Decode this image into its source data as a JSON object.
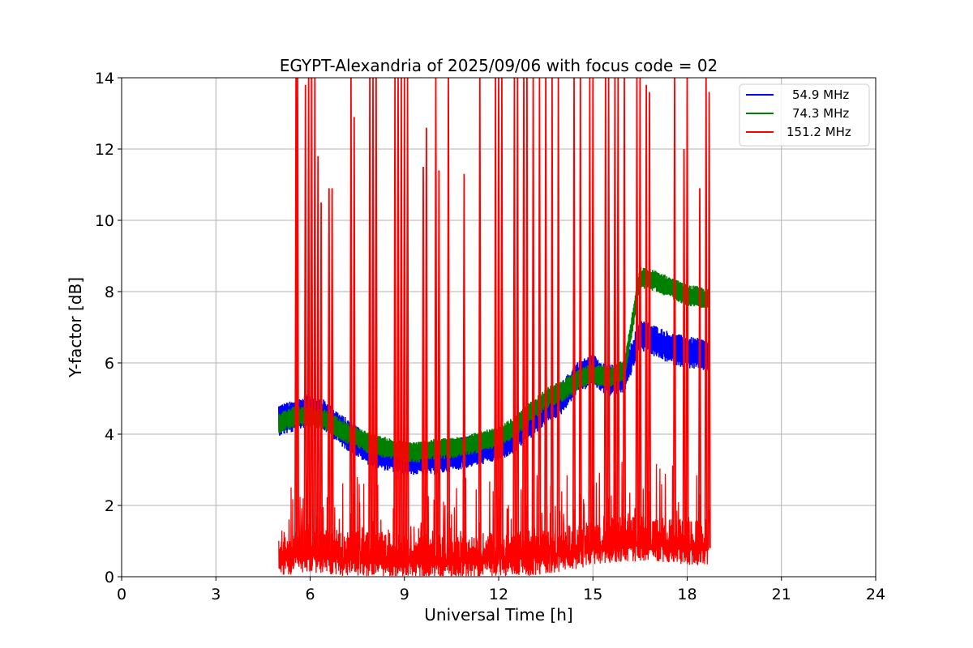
{
  "chart_data": {
    "type": "line",
    "title": "EGYPT-Alexandria of 2025/09/06 with focus code = 02",
    "xlabel": "Universal Time [h]",
    "ylabel": "Y-factor [dB]",
    "xlim": [
      0,
      24
    ],
    "ylim": [
      0,
      14
    ],
    "xticks": [
      "0",
      "3",
      "6",
      "9",
      "12",
      "15",
      "18",
      "21",
      "24"
    ],
    "yticks": [
      "0",
      "2",
      "4",
      "6",
      "8",
      "10",
      "12",
      "14"
    ],
    "grid": true,
    "legend_position": "top-right",
    "series": [
      {
        "name": "54.9 MHz",
        "color": "#0000ff",
        "x": [
          5.0,
          5.5,
          6.0,
          6.5,
          7.0,
          7.5,
          8.0,
          8.5,
          9.0,
          9.5,
          10.0,
          10.5,
          11.0,
          11.5,
          12.0,
          12.5,
          13.0,
          13.5,
          14.0,
          14.5,
          15.0,
          15.5,
          16.0,
          16.5,
          17.0,
          17.5,
          18.0,
          18.7
        ],
        "values": [
          4.4,
          4.5,
          4.7,
          4.5,
          4.1,
          3.8,
          3.5,
          3.4,
          3.3,
          3.3,
          3.3,
          3.4,
          3.5,
          3.6,
          3.7,
          3.9,
          4.3,
          4.7,
          5.0,
          5.6,
          5.8,
          5.5,
          5.6,
          6.8,
          6.6,
          6.4,
          6.3,
          6.2
        ],
        "band": 0.45
      },
      {
        "name": "74.3 MHz",
        "color": "#008000",
        "x": [
          5.0,
          5.5,
          6.0,
          6.5,
          7.0,
          7.5,
          8.0,
          8.5,
          9.0,
          9.5,
          10.0,
          10.5,
          11.0,
          11.5,
          12.0,
          12.5,
          13.0,
          13.5,
          14.0,
          14.5,
          15.0,
          15.5,
          16.0,
          16.5,
          17.0,
          17.5,
          18.0,
          18.7
        ],
        "values": [
          4.3,
          4.5,
          4.5,
          4.4,
          4.1,
          3.9,
          3.7,
          3.6,
          3.5,
          3.5,
          3.6,
          3.6,
          3.7,
          3.8,
          3.9,
          4.2,
          4.6,
          5.0,
          5.2,
          5.5,
          5.7,
          5.6,
          5.8,
          8.4,
          8.3,
          8.1,
          7.9,
          7.8
        ],
        "band": 0.3
      },
      {
        "name": "151.2 MHz",
        "color": "#ff0000",
        "baseline_x": [
          5.0,
          6.0,
          7.0,
          8.0,
          9.0,
          10.0,
          11.0,
          12.0,
          13.0,
          14.0,
          15.0,
          16.0,
          16.5,
          17.0,
          18.0,
          18.7
        ],
        "baseline_values": [
          0.5,
          0.6,
          0.5,
          0.5,
          0.4,
          0.4,
          0.4,
          0.5,
          0.5,
          0.6,
          0.8,
          0.9,
          0.9,
          0.9,
          0.8,
          0.8
        ],
        "band": 0.5,
        "spikes_x": [
          5.55,
          5.6,
          5.85,
          5.95,
          6.05,
          6.15,
          6.25,
          6.35,
          6.6,
          6.7,
          7.3,
          7.4,
          7.9,
          8.0,
          8.1,
          8.7,
          8.8,
          8.9,
          9.0,
          9.1,
          9.6,
          9.7,
          10.0,
          10.1,
          10.4,
          10.9,
          11.4,
          11.9,
          12.0,
          12.1,
          12.5,
          12.6,
          12.8,
          12.9,
          13.1,
          13.3,
          13.5,
          13.7,
          13.9,
          14.4,
          14.6,
          14.9,
          15.0,
          15.4,
          15.5,
          15.7,
          15.8,
          16.0,
          16.4,
          16.5,
          16.7,
          16.8,
          17.6,
          17.9,
          18.0,
          18.4,
          18.6,
          18.7
        ],
        "spikes_values": [
          14.0,
          14.0,
          13.8,
          14.0,
          14.0,
          14.0,
          11.8,
          10.5,
          10.9,
          10.9,
          14.0,
          12.9,
          14.0,
          14.0,
          14.0,
          14.0,
          14.0,
          14.0,
          14.0,
          14.0,
          11.5,
          12.6,
          14.0,
          11.4,
          14.0,
          11.3,
          14.0,
          14.0,
          14.0,
          14.0,
          14.0,
          14.0,
          14.0,
          14.0,
          14.0,
          14.0,
          14.0,
          14.0,
          14.0,
          14.0,
          14.0,
          14.0,
          14.0,
          14.0,
          14.0,
          14.0,
          14.0,
          14.0,
          14.0,
          14.0,
          13.8,
          13.6,
          14.0,
          12.0,
          14.0,
          10.9,
          14.0,
          13.6
        ]
      }
    ]
  }
}
